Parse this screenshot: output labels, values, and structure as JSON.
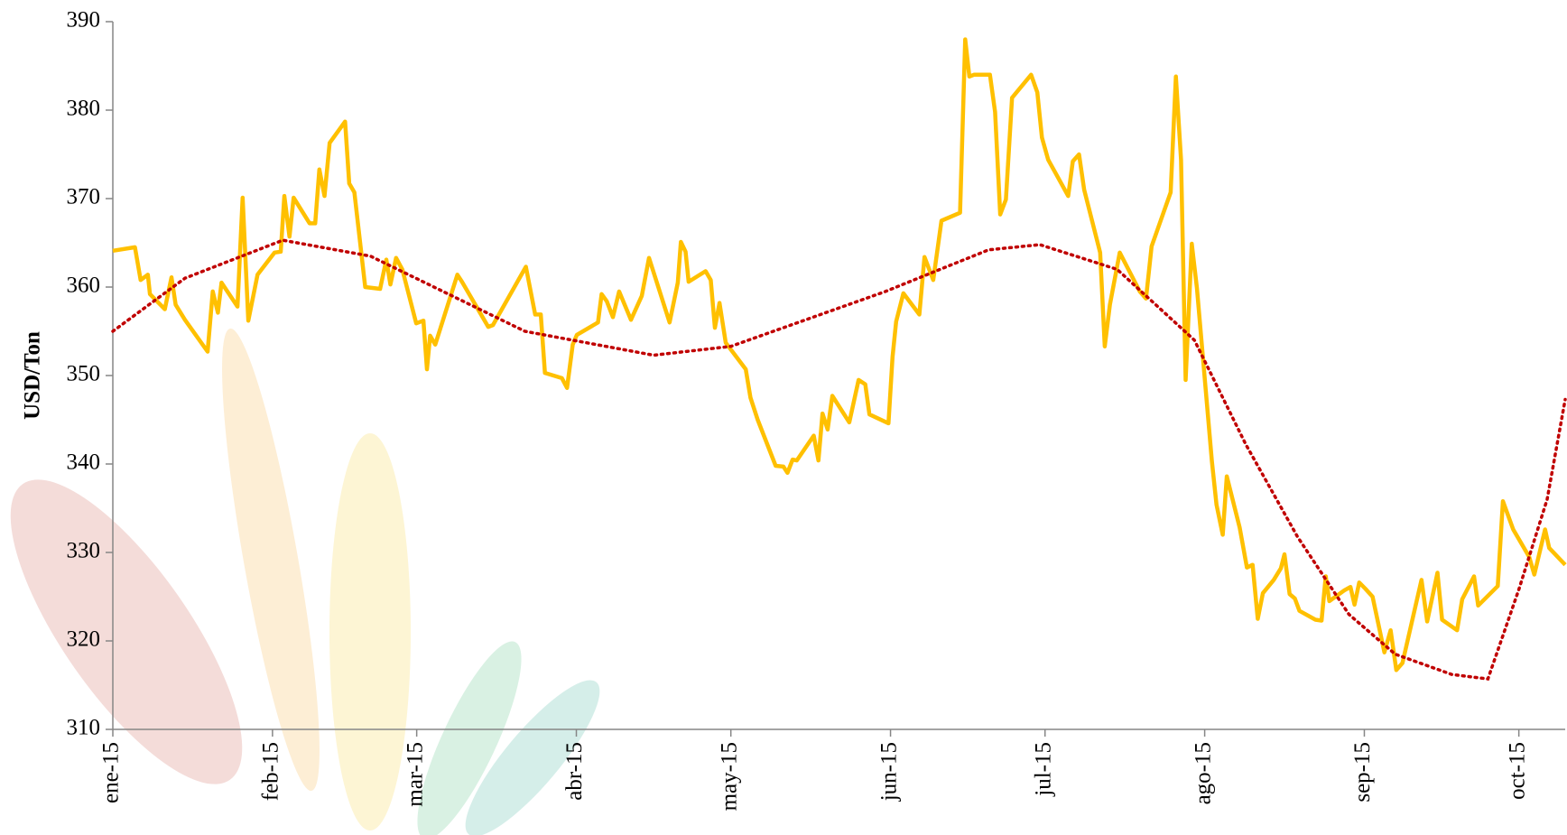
{
  "chart_data": {
    "type": "line",
    "y_label": "USD/Ton",
    "xlim": [
      0,
      282
    ],
    "xticks": [
      {
        "value": 0,
        "label": "ene-15"
      },
      {
        "value": 31,
        "label": "feb-15"
      },
      {
        "value": 59,
        "label": "mar-15"
      },
      {
        "value": 90,
        "label": "abr-15"
      },
      {
        "value": 120,
        "label": "may-15"
      },
      {
        "value": 151,
        "label": "jun-15"
      },
      {
        "value": 181,
        "label": "jul-15"
      },
      {
        "value": 212,
        "label": "ago-15"
      },
      {
        "value": 243,
        "label": "sep-15"
      },
      {
        "value": 273,
        "label": "oct-15"
      }
    ],
    "ylim": [
      310,
      390
    ],
    "yticks": [
      310,
      320,
      330,
      340,
      350,
      360,
      370,
      380,
      390
    ],
    "x": [
      0,
      4.3,
      5.4,
      6.8,
      7.2,
      10.1,
      11.4,
      12.2,
      14,
      18.4,
      19.4,
      20.4,
      21.1,
      24.2,
      25.2,
      26.3,
      28.1,
      31.4,
      32.6,
      33.3,
      34.3,
      35.1,
      38.2,
      39.3,
      40.1,
      41.1,
      42.1,
      45.1,
      45.9,
      46.9,
      49,
      51.9,
      53.1,
      53.9,
      55,
      56.2,
      58.9,
      60.3,
      61,
      61.6,
      62.6,
      66.9,
      67.8,
      72.9,
      73.8,
      80.2,
      82,
      83.1,
      83.9,
      87.2,
      88.2,
      89.3,
      90.1,
      94.2,
      94.9,
      95.9,
      97.1,
      98.3,
      100.6,
      102.7,
      104.1,
      108.1,
      109.7,
      110.3,
      111.2,
      111.8,
      115.1,
      116.1,
      116.9,
      117.8,
      119,
      122.9,
      123.8,
      125.2,
      128.7,
      130.2,
      131,
      132,
      132.8,
      136.1,
      137,
      137.8,
      138.8,
      139.7,
      143,
      144.8,
      146.1,
      146.9,
      150.6,
      151.4,
      152.1,
      153.5,
      156.6,
      157.6,
      159.3,
      160.9,
      164.5,
      165.5,
      166.3,
      167.2,
      170.3,
      171.3,
      172.3,
      173.4,
      174.6,
      178.3,
      179.5,
      180.4,
      181.6,
      185.5,
      186.4,
      187.6,
      188.6,
      191.7,
      192.6,
      193.6,
      195.5,
      199.4,
      200.6,
      201.7,
      205.4,
      206.4,
      207.4,
      208.3,
      209.5,
      210.5,
      213.4,
      214.3,
      215.5,
      216.3,
      218.8,
      220.2,
      221.3,
      222.3,
      223.3,
      225.4,
      226.8,
      227.5,
      228.5,
      229.5,
      230.4,
      233.5,
      234.7,
      235.5,
      236.2,
      239.1,
      240.3,
      241.1,
      242,
      243.2,
      244.6,
      246.9,
      248.1,
      249.2,
      250.4,
      254.1,
      255.2,
      257.2,
      258.1,
      261,
      262,
      264.3,
      265.1,
      268.9,
      269.9,
      271.9,
      275,
      276,
      278.1,
      278.9,
      282
    ],
    "series": [
      {
        "color": "#FFC000",
        "values": [
          364.1,
          364.5,
          360.8,
          361.4,
          359.2,
          357.5,
          361.1,
          358,
          356.3,
          352.7,
          359.5,
          357.1,
          360.5,
          357.8,
          370.1,
          356.2,
          361.4,
          363.9,
          364,
          370.3,
          365.7,
          370.1,
          367.2,
          367.2,
          373.3,
          370.3,
          376.3,
          378.7,
          371.7,
          370.7,
          360,
          359.8,
          363.1,
          360.3,
          363.3,
          362,
          355.9,
          356.2,
          350.7,
          354.5,
          353.5,
          361.4,
          360.6,
          355.5,
          355.7,
          362.3,
          356.9,
          356.9,
          350.3,
          349.7,
          348.6,
          353.5,
          354.6,
          356,
          359.2,
          358.4,
          356.6,
          359.5,
          356.3,
          359,
          363.3,
          356,
          360.5,
          365.1,
          364,
          360.6,
          361.8,
          360.8,
          355.4,
          358.2,
          353.7,
          350.7,
          347.5,
          345,
          339.8,
          339.7,
          339,
          340.5,
          340.4,
          343.2,
          340.4,
          345.7,
          343.9,
          347.7,
          344.7,
          349.5,
          349,
          345.6,
          344.6,
          352.1,
          356.1,
          359.3,
          356.9,
          363.4,
          360.8,
          367.5,
          368.4,
          388,
          383.8,
          384,
          384,
          379.8,
          368.2,
          369.9,
          381.4,
          384,
          382,
          376.9,
          374.4,
          370.3,
          374.2,
          375,
          371,
          363.9,
          353.3,
          358,
          363.9,
          359.5,
          358.7,
          364.6,
          370.7,
          383.8,
          374.4,
          349.5,
          364.9,
          359.9,
          340.3,
          335.4,
          332,
          338.6,
          332.8,
          328.3,
          328.6,
          322.5,
          325.4,
          326.9,
          328.2,
          329.8,
          325.3,
          324.8,
          323.4,
          322.4,
          322.3,
          327.3,
          324.5,
          325.7,
          326.1,
          324.1,
          326.6,
          325.9,
          325,
          318.7,
          321.2,
          316.7,
          317.5,
          326.9,
          322.2,
          327.7,
          322.4,
          321.2,
          324.7,
          327.3,
          324,
          326.2,
          335.8,
          332.6,
          329.5,
          327.5,
          332.6,
          330.5,
          328.6
        ]
      }
    ],
    "trendline": {
      "color": "#C00000",
      "x": [
        0,
        14,
        33,
        50,
        80,
        105,
        120,
        150,
        170,
        180,
        195,
        210,
        220,
        230,
        240,
        249,
        260,
        267,
        273,
        278.5,
        282
      ],
      "values": [
        355,
        361,
        365.3,
        363.5,
        355,
        352.3,
        353.3,
        359.5,
        364.2,
        364.8,
        362,
        354,
        342.2,
        331.8,
        323,
        318.5,
        316.2,
        315.7,
        325.8,
        336,
        347.3
      ]
    }
  }
}
